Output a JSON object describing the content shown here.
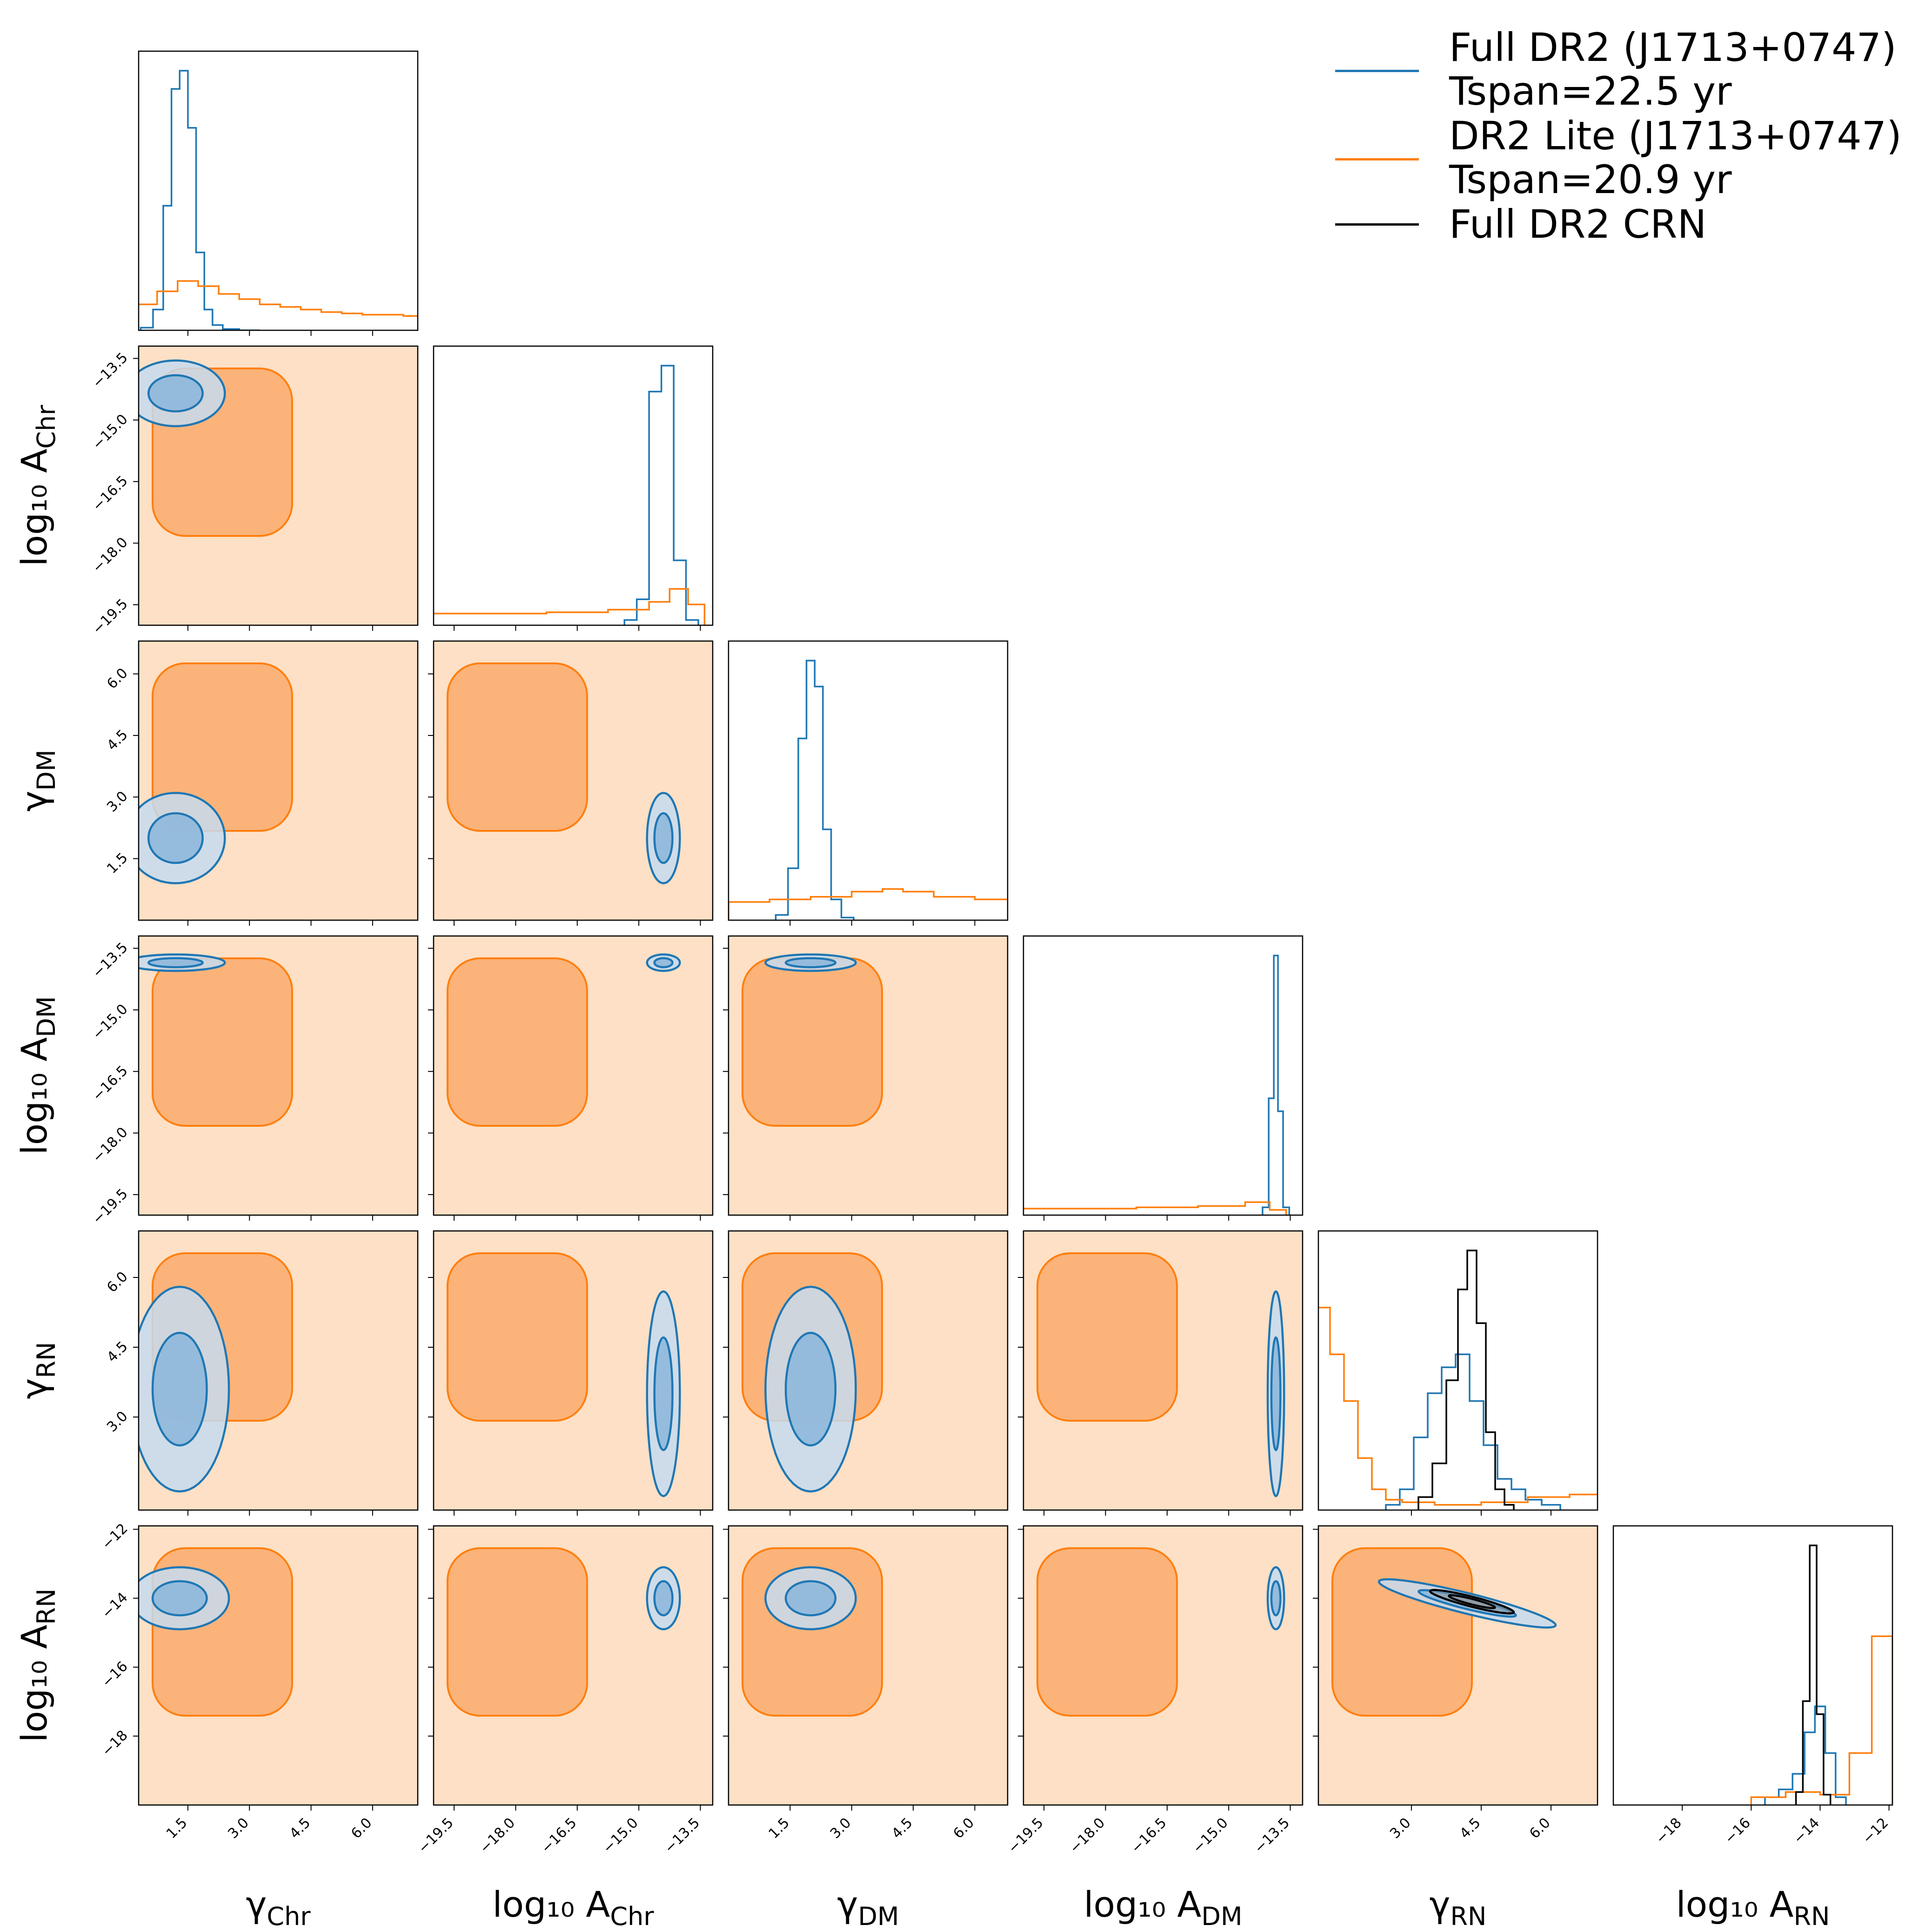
{
  "colors": {
    "full": "#1f77b4",
    "lite": "#ff7f0e",
    "crn": "#000000",
    "lite_fill_outer": "#fde0c5",
    "lite_fill_inner": "#fbb37a",
    "full_fill_outer": "#c6dbef",
    "full_fill_inner": "#8fb8dc",
    "overlap": "#8e98a3"
  },
  "legend": [
    {
      "key": "full",
      "line1": "Full DR2 (J1713+0747)",
      "line2": "Tspan=22.5 yr"
    },
    {
      "key": "lite",
      "line1": "DR2 Lite (J1713+0747)",
      "line2": "Tspan=20.9 yr"
    },
    {
      "key": "crn",
      "line1": "Full DR2 CRN",
      "line2": ""
    }
  ],
  "chart_data": {
    "type": "corner",
    "parameters": [
      {
        "id": "gamma_chr",
        "base": "γ",
        "sub": "Chr",
        "range": [
          0.3,
          7.1
        ],
        "ticks": [
          "1.5",
          "3.0",
          "4.5",
          "6.0"
        ],
        "tick_values": [
          1.5,
          3.0,
          4.5,
          6.0
        ]
      },
      {
        "id": "log10_A_chr",
        "base": "log₁₀ A",
        "sub": "Chr",
        "range": [
          -20.0,
          -13.2
        ],
        "ticks": [
          "−19.5",
          "−18.0",
          "−16.5",
          "−15.0",
          "−13.5"
        ],
        "tick_values": [
          -19.5,
          -18.0,
          -16.5,
          -15.0,
          -13.5
        ]
      },
      {
        "id": "gamma_dm",
        "base": "γ",
        "sub": "DM",
        "range": [
          0.0,
          6.8
        ],
        "ticks": [
          "1.5",
          "3.0",
          "4.5",
          "6.0"
        ],
        "tick_values": [
          1.5,
          3.0,
          4.5,
          6.0
        ]
      },
      {
        "id": "log10_A_dm",
        "base": "log₁₀ A",
        "sub": "DM",
        "range": [
          -20.0,
          -13.2
        ],
        "ticks": [
          "−19.5",
          "−18.0",
          "−16.5",
          "−15.0",
          "−13.5"
        ],
        "tick_values": [
          -19.5,
          -18.0,
          -16.5,
          -15.0,
          -13.5
        ]
      },
      {
        "id": "gamma_rn",
        "base": "γ",
        "sub": "RN",
        "range": [
          1.0,
          7.0
        ],
        "ticks": [
          "3.0",
          "4.5",
          "6.0"
        ],
        "tick_values": [
          3.0,
          4.5,
          6.0
        ]
      },
      {
        "id": "log10_A_rn",
        "base": "log₁₀ A",
        "sub": "RN",
        "range": [
          -20.0,
          -11.9
        ],
        "ticks": [
          "−18",
          "−16",
          "−14",
          "−12"
        ],
        "tick_values": [
          -18,
          -16,
          -14,
          -12
        ]
      }
    ],
    "histograms": [
      {
        "param": "gamma_chr",
        "series": [
          {
            "key": "full",
            "centers": [
              0.5,
              0.8,
              1.0,
              1.2,
              1.4,
              1.6,
              1.8,
              2.0,
              2.2,
              2.5,
              3.0
            ],
            "values": [
              0.01,
              0.08,
              0.48,
              0.93,
              1.0,
              0.78,
              0.3,
              0.08,
              0.02,
              0.005,
              0.0
            ]
          },
          {
            "key": "lite",
            "centers": [
              0.5,
              1.0,
              1.5,
              2.0,
              2.5,
              3.0,
              3.5,
              4.0,
              4.5,
              5.0,
              5.5,
              6.0,
              6.5,
              7.0
            ],
            "values": [
              0.1,
              0.15,
              0.19,
              0.17,
              0.14,
              0.12,
              0.1,
              0.09,
              0.08,
              0.07,
              0.065,
              0.06,
              0.06,
              0.055
            ]
          }
        ]
      },
      {
        "param": "log10_A_chr",
        "series": [
          {
            "key": "full",
            "centers": [
              -15.2,
              -14.9,
              -14.6,
              -14.3,
              -14.0,
              -13.7
            ],
            "values": [
              0.02,
              0.1,
              0.9,
              1.0,
              0.25,
              0.02
            ]
          },
          {
            "key": "lite",
            "centers": [
              -19.5,
              -18.0,
              -16.5,
              -15.0,
              -14.5,
              -14.0,
              -13.6
            ],
            "values": [
              0.045,
              0.045,
              0.05,
              0.06,
              0.09,
              0.14,
              0.08
            ]
          }
        ]
      },
      {
        "param": "gamma_dm",
        "series": [
          {
            "key": "full",
            "centers": [
              1.3,
              1.6,
              1.8,
              2.0,
              2.2,
              2.4,
              2.6,
              2.9
            ],
            "values": [
              0.02,
              0.2,
              0.7,
              1.0,
              0.9,
              0.35,
              0.08,
              0.01
            ]
          },
          {
            "key": "lite",
            "centers": [
              0.5,
              1.5,
              2.5,
              3.5,
              4.0,
              4.5,
              5.5,
              6.5
            ],
            "values": [
              0.07,
              0.08,
              0.09,
              0.11,
              0.12,
              0.11,
              0.09,
              0.08
            ]
          }
        ]
      },
      {
        "param": "log10_A_dm",
        "series": [
          {
            "key": "full",
            "centers": [
              -14.1,
              -13.95,
              -13.85,
              -13.75,
              -13.6
            ],
            "values": [
              0.03,
              0.45,
              1.0,
              0.4,
              0.03
            ]
          },
          {
            "key": "lite",
            "centers": [
              -19.5,
              -18.0,
              -16.5,
              -15.0,
              -14.2,
              -13.8
            ],
            "values": [
              0.025,
              0.025,
              0.03,
              0.035,
              0.05,
              0.02
            ]
          }
        ]
      },
      {
        "param": "gamma_rn",
        "series": [
          {
            "key": "full",
            "centers": [
              2.6,
              2.9,
              3.2,
              3.5,
              3.8,
              4.1,
              4.4,
              4.7,
              5.0,
              5.3,
              5.6,
              6.0
            ],
            "values": [
              0.02,
              0.08,
              0.28,
              0.45,
              0.55,
              0.6,
              0.42,
              0.25,
              0.12,
              0.08,
              0.04,
              0.02
            ]
          },
          {
            "key": "lite",
            "centers": [
              1.1,
              1.4,
              1.7,
              2.0,
              2.3,
              2.6,
              3.0,
              4.0,
              5.0,
              6.0,
              6.8
            ],
            "values": [
              0.78,
              0.6,
              0.42,
              0.2,
              0.08,
              0.04,
              0.03,
              0.02,
              0.03,
              0.05,
              0.06
            ]
          },
          {
            "key": "crn",
            "centers": [
              3.3,
              3.6,
              3.9,
              4.1,
              4.3,
              4.5,
              4.7,
              4.9,
              5.1
            ],
            "values": [
              0.05,
              0.18,
              0.5,
              0.85,
              1.0,
              0.72,
              0.3,
              0.08,
              0.02
            ]
          }
        ]
      },
      {
        "param": "log10_A_rn",
        "series": [
          {
            "key": "full",
            "centers": [
              -15.4,
              -15.0,
              -14.6,
              -14.3,
              -14.0,
              -13.7,
              -13.4
            ],
            "values": [
              0.03,
              0.06,
              0.12,
              0.28,
              0.38,
              0.2,
              0.03
            ]
          },
          {
            "key": "lite",
            "centers": [
              -15.5,
              -14.5,
              -13.5,
              -12.8,
              -12.2
            ],
            "values": [
              0.03,
              0.05,
              0.04,
              0.2,
              0.65
            ]
          },
          {
            "key": "crn",
            "centers": [
              -14.6,
              -14.4,
              -14.2,
              -14.0,
              -13.8
            ],
            "values": [
              0.05,
              0.4,
              1.0,
              0.35,
              0.04
            ]
          }
        ]
      }
    ],
    "contours": [
      {
        "x": "gamma_chr",
        "y": "log10_A_chr",
        "full": {
          "center": [
            1.2,
            -14.35
          ],
          "sx": 0.6,
          "sy": 0.4,
          "rho": 0.0
        },
        "lite": "broad"
      },
      {
        "x": "gamma_chr",
        "y": "gamma_dm",
        "full": {
          "center": [
            1.2,
            2.0
          ],
          "sx": 0.6,
          "sy": 0.55,
          "rho": 0.0
        },
        "lite": "broad"
      },
      {
        "x": "log10_A_chr",
        "y": "gamma_dm",
        "full": {
          "center": [
            -14.4,
            2.0
          ],
          "sx": 0.2,
          "sy": 0.55,
          "rho": 0.0
        },
        "lite": "broad"
      },
      {
        "x": "gamma_chr",
        "y": "log10_A_dm",
        "full": {
          "center": [
            1.2,
            -13.85
          ],
          "sx": 0.6,
          "sy": 0.1,
          "rho": 0.0
        },
        "lite": "broad"
      },
      {
        "x": "log10_A_chr",
        "y": "log10_A_dm",
        "full": {
          "center": [
            -14.4,
            -13.85
          ],
          "sx": 0.2,
          "sy": 0.1,
          "rho": 0.0
        },
        "lite": "broad"
      },
      {
        "x": "gamma_dm",
        "y": "log10_A_dm",
        "full": {
          "center": [
            2.0,
            -13.85
          ],
          "sx": 0.55,
          "sy": 0.1,
          "rho": 0.0
        },
        "lite": "broad"
      },
      {
        "x": "gamma_chr",
        "y": "gamma_rn",
        "full": {
          "center": [
            1.3,
            3.6
          ],
          "sx": 0.6,
          "sy": 1.1,
          "rho": 0.0
        },
        "lite": "broad"
      },
      {
        "x": "log10_A_chr",
        "y": "gamma_rn",
        "full": {
          "center": [
            -14.4,
            3.5
          ],
          "sx": 0.2,
          "sy": 1.1,
          "rho": 0.0
        },
        "lite": "broad"
      },
      {
        "x": "gamma_dm",
        "y": "gamma_rn",
        "full": {
          "center": [
            2.0,
            3.6
          ],
          "sx": 0.55,
          "sy": 1.1,
          "rho": 0.0
        },
        "lite": "broad"
      },
      {
        "x": "log10_A_dm",
        "y": "gamma_rn",
        "full": {
          "center": [
            -13.85,
            3.5
          ],
          "sx": 0.1,
          "sy": 1.1,
          "rho": 0.0
        },
        "lite": "broad"
      },
      {
        "x": "gamma_chr",
        "y": "log10_A_rn",
        "full": {
          "center": [
            1.3,
            -14.0
          ],
          "sx": 0.6,
          "sy": 0.45,
          "rho": 0.0
        },
        "lite": "broad"
      },
      {
        "x": "log10_A_chr",
        "y": "log10_A_rn",
        "full": {
          "center": [
            -14.4,
            -14.0
          ],
          "sx": 0.2,
          "sy": 0.45,
          "rho": 0.0
        },
        "lite": "broad"
      },
      {
        "x": "gamma_dm",
        "y": "log10_A_rn",
        "full": {
          "center": [
            2.0,
            -14.0
          ],
          "sx": 0.55,
          "sy": 0.45,
          "rho": 0.0
        },
        "lite": "broad"
      },
      {
        "x": "log10_A_dm",
        "y": "log10_A_rn",
        "full": {
          "center": [
            -13.85,
            -14.0
          ],
          "sx": 0.1,
          "sy": 0.45,
          "rho": 0.0
        },
        "lite": "broad"
      },
      {
        "x": "gamma_rn",
        "y": "log10_A_rn",
        "full": {
          "center": [
            4.2,
            -14.15
          ],
          "sx": 0.95,
          "sy": 0.35,
          "rho": -0.9
        },
        "crn": {
          "center": [
            4.3,
            -14.1
          ],
          "sx": 0.45,
          "sy": 0.17,
          "rho": -0.9
        },
        "lite": "broad"
      }
    ]
  }
}
